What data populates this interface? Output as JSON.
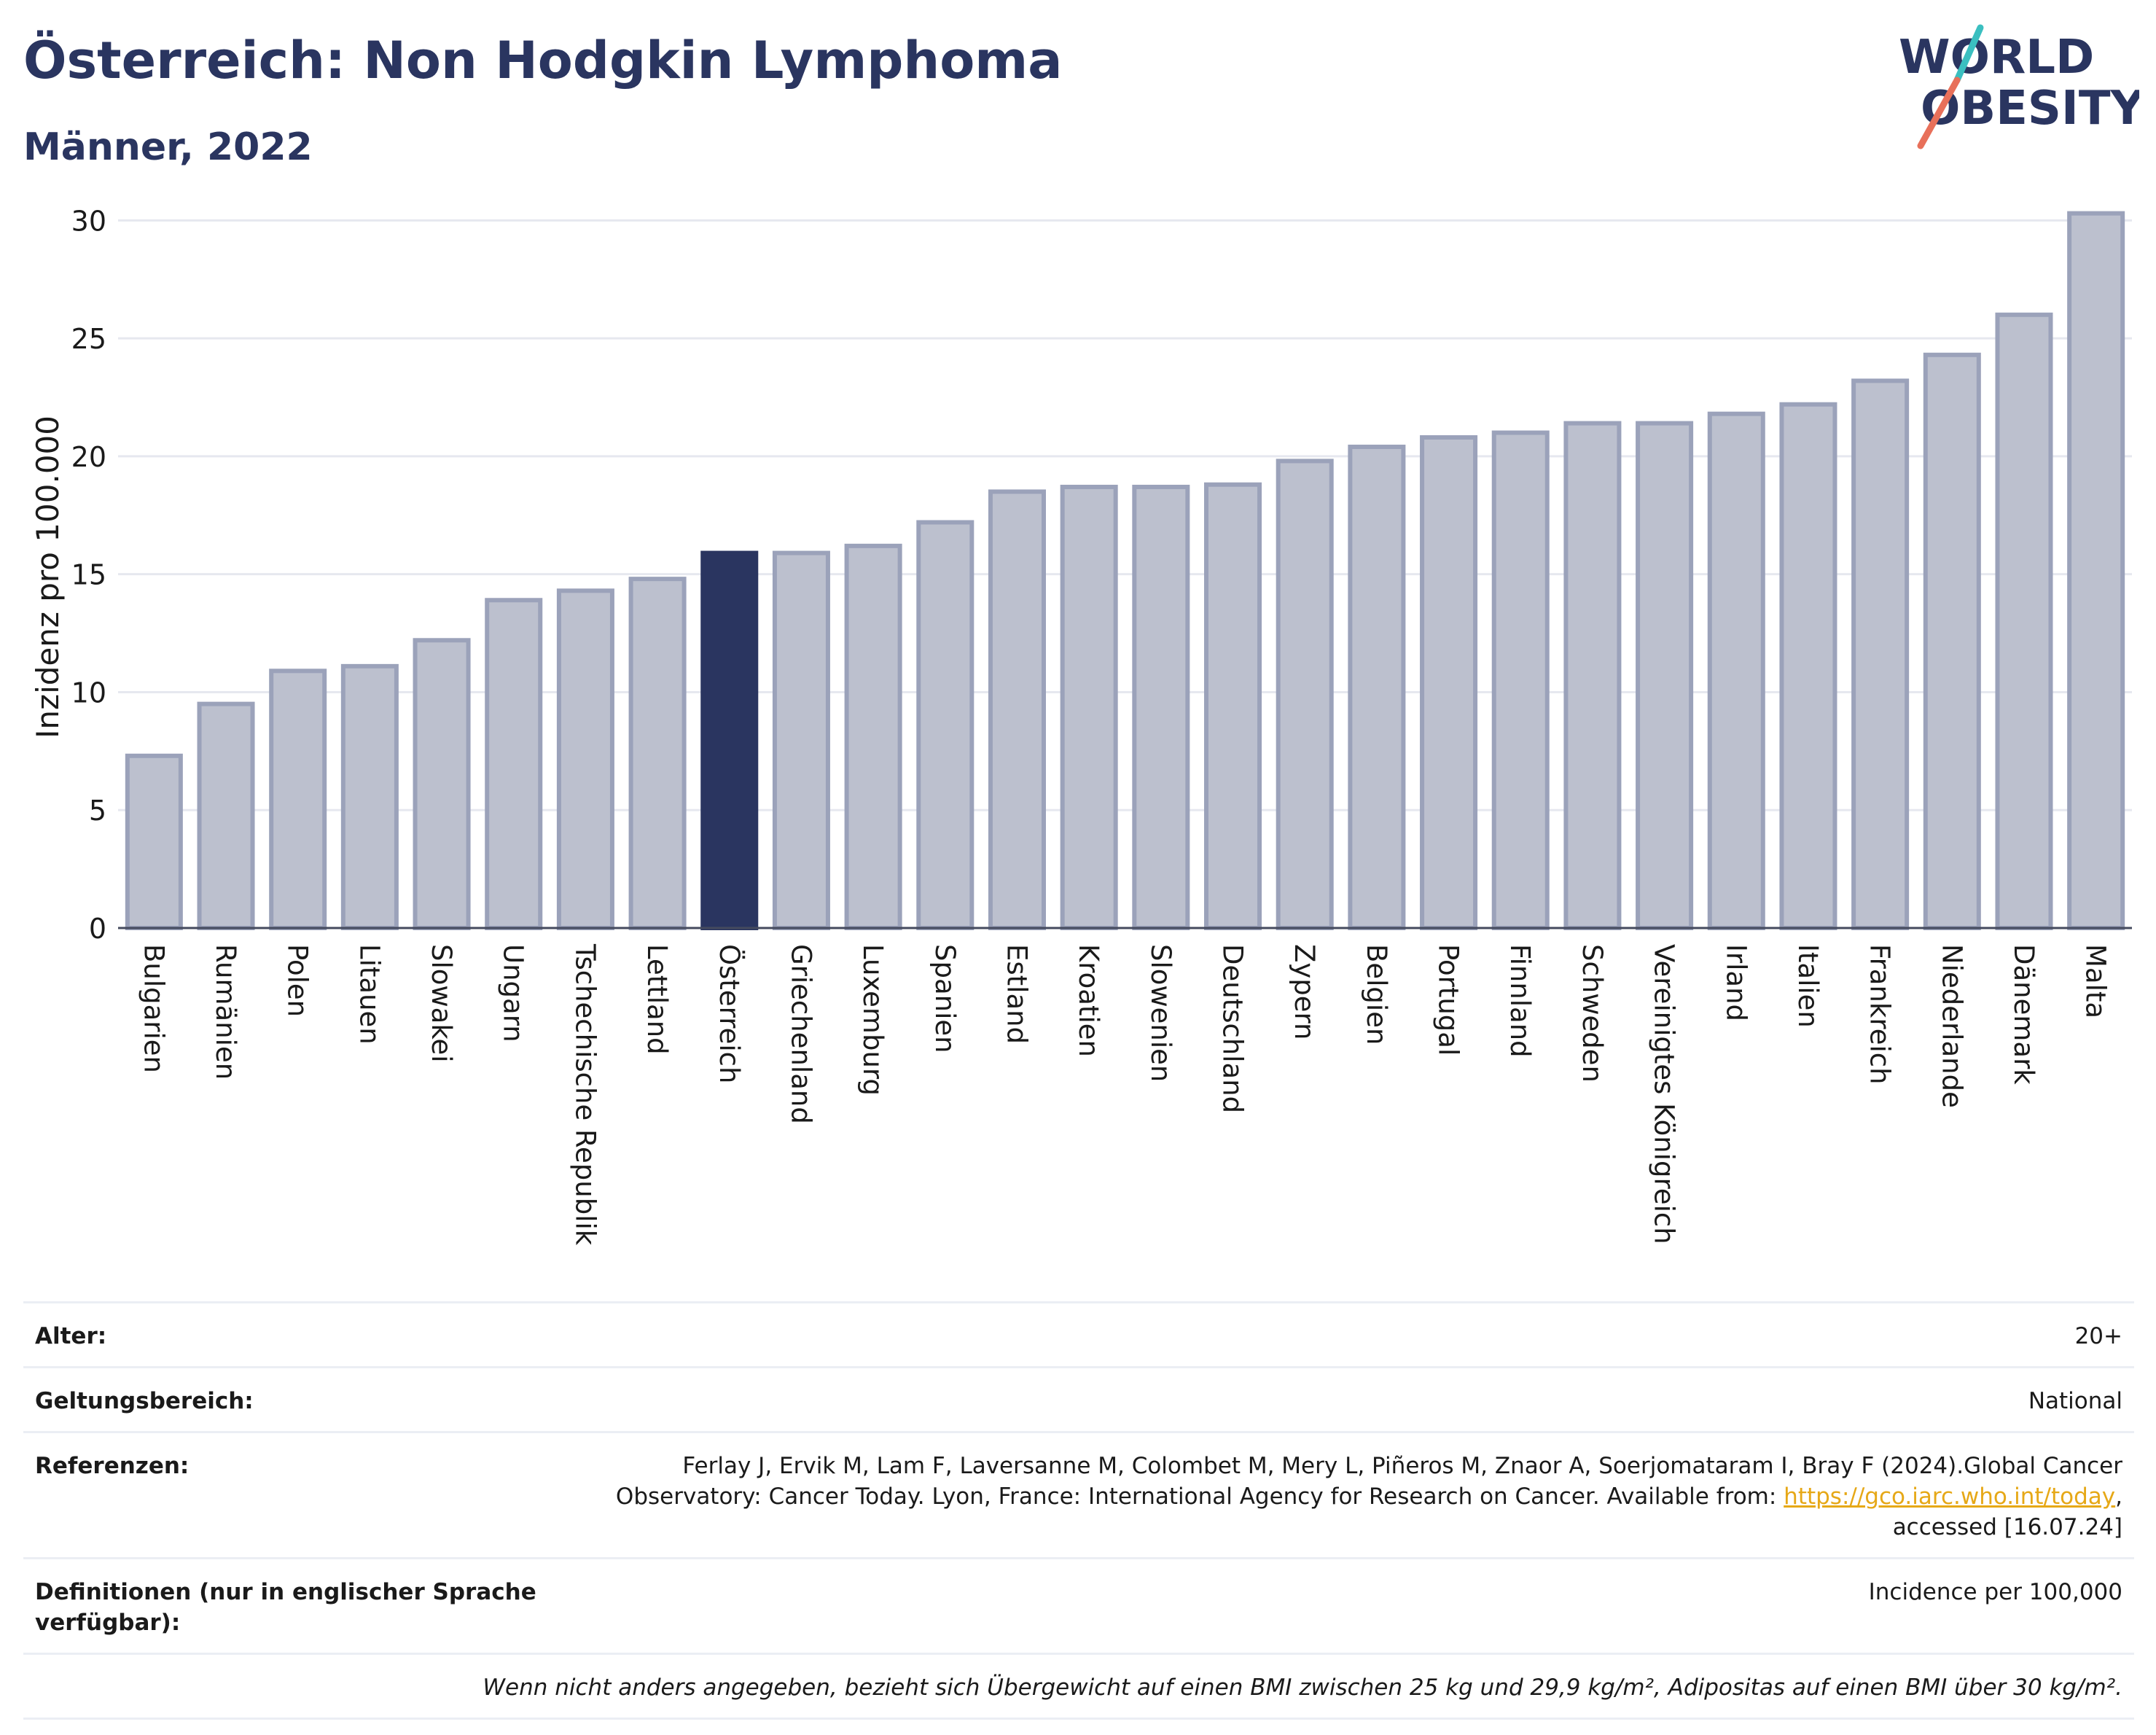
{
  "header": {
    "title": "Österreich: Non Hodgkin Lymphoma",
    "subtitle": "Männer, 2022"
  },
  "logo": {
    "line1": "WORLD",
    "line2": "OBESITY",
    "colors": {
      "text": "#2a3560",
      "slash_teal": "#3bbfc0",
      "slash_coral": "#e8705a"
    }
  },
  "chart_data": {
    "type": "bar",
    "ylabel": "Inzidenz pro 100.000",
    "xlabel": "",
    "ylim": [
      0,
      31
    ],
    "yticks": [
      0,
      5,
      10,
      15,
      20,
      25,
      30
    ],
    "grid": true,
    "highlight": "Österreich",
    "colors": {
      "bar": "#bcc0ce",
      "bar_edge": "#9ba2ba",
      "highlight": "#2a3560"
    },
    "categories": [
      "Bulgarien",
      "Rumänien",
      "Polen",
      "Litauen",
      "Slowakei",
      "Ungarn",
      "Tschechische Republik",
      "Lettland",
      "Österreich",
      "Griechenland",
      "Luxemburg",
      "Spanien",
      "Estland",
      "Kroatien",
      "Slowenien",
      "Deutschland",
      "Zypern",
      "Belgien",
      "Portugal",
      "Finnland",
      "Schweden",
      "Vereinigtes Königreich",
      "Irland",
      "Italien",
      "Frankreich",
      "Niederlande",
      "Dänemark",
      "Malta"
    ],
    "values": [
      7.3,
      9.5,
      10.9,
      11.1,
      12.2,
      13.9,
      14.3,
      14.8,
      15.9,
      15.9,
      16.2,
      17.2,
      18.5,
      18.7,
      18.7,
      18.8,
      19.8,
      20.4,
      20.8,
      21.0,
      21.4,
      21.4,
      21.8,
      22.2,
      23.2,
      24.3,
      26.0,
      30.3
    ]
  },
  "meta": {
    "rows": [
      {
        "label": "Alter:",
        "value": "20+"
      },
      {
        "label": "Geltungsbereich:",
        "value": "National"
      }
    ],
    "references": {
      "label": "Referenzen:",
      "line1": "Ferlay J, Ervik M, Lam F, Laversanne M, Colombet M, Mery L, Piñeros M, Znaor A, Soerjomataram I, Bray F (2024).Global Cancer",
      "line2": "Observatory: Cancer Today. Lyon, France: International Agency for Research on Cancer. Available from: ",
      "link": "https://gco.iarc.who.int/today",
      "line2_end": ",",
      "line3": "accessed [16.07.24]"
    },
    "definitions": {
      "label": "Definitionen (nur in englischer Sprache verfügbar):",
      "value": "Incidence per 100,000"
    },
    "note": "Wenn nicht anders angegeben, bezieht sich Übergewicht auf einen BMI zwischen 25 kg und 29,9 kg/m², Adipositas auf einen BMI über 30 kg/m²."
  }
}
